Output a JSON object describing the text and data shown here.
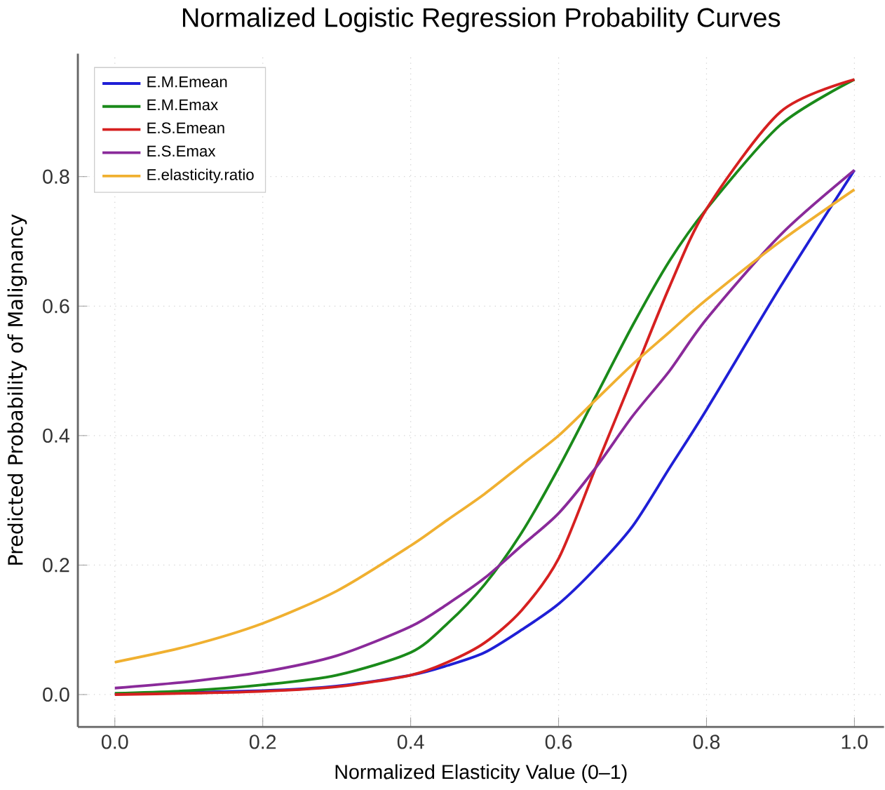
{
  "chart_data": {
    "type": "line",
    "title": "Normalized Logistic Regression Probability Curves",
    "xlabel": "Normalized Elasticity Value (0–1)",
    "ylabel": "Predicted Probability of Malignancy",
    "x": [
      0,
      0.1,
      0.2,
      0.3,
      0.4,
      0.45,
      0.5,
      0.55,
      0.6,
      0.65,
      0.7,
      0.75,
      0.8,
      0.9,
      1.0
    ],
    "series": [
      {
        "name": "E.M.Emean",
        "color": "#1f1fd6",
        "values": [
          0.001,
          null,
          0.006,
          0.013,
          0.03,
          0.045,
          0.065,
          0.1,
          0.14,
          0.195,
          0.26,
          0.35,
          0.44,
          0.63,
          0.81
        ]
      },
      {
        "name": "E.M.Emax",
        "color": "#1a8a1a",
        "values": [
          0.002,
          0.006,
          0.015,
          0.03,
          0.065,
          0.11,
          0.17,
          0.25,
          0.35,
          0.46,
          0.57,
          0.67,
          0.75,
          0.88,
          0.95
        ]
      },
      {
        "name": "E.S.Emean",
        "color": "#d62020",
        "values": [
          0.0,
          0.002,
          0.005,
          0.012,
          0.03,
          0.05,
          0.08,
          0.13,
          0.21,
          0.35,
          0.49,
          0.63,
          0.75,
          0.9,
          0.95
        ]
      },
      {
        "name": "E.S.Emax",
        "color": "#8a2a9a",
        "values": [
          0.01,
          0.02,
          0.035,
          0.06,
          0.105,
          0.14,
          0.18,
          0.23,
          0.28,
          0.35,
          0.43,
          0.5,
          0.58,
          0.71,
          0.81
        ]
      },
      {
        "name": "E.elasticity.ratio",
        "color": "#f0b030",
        "values": [
          0.05,
          0.075,
          0.11,
          0.16,
          0.23,
          0.27,
          0.31,
          0.355,
          0.4,
          0.455,
          0.51,
          0.56,
          0.61,
          0.7,
          0.78
        ]
      }
    ],
    "xlim": [
      -0.05,
      1.04
    ],
    "ylim": [
      -0.05,
      0.99
    ],
    "xticks": [
      {
        "value": 0,
        "label": "0.0"
      },
      0.2,
      0.4,
      0.6,
      0.8,
      {
        "value": 1,
        "label": "1.0"
      }
    ],
    "yticks": [
      {
        "value": 0,
        "label": "0.0"
      },
      0.2,
      0.4,
      0.6,
      0.8
    ],
    "grid": true,
    "legend": "top left"
  }
}
